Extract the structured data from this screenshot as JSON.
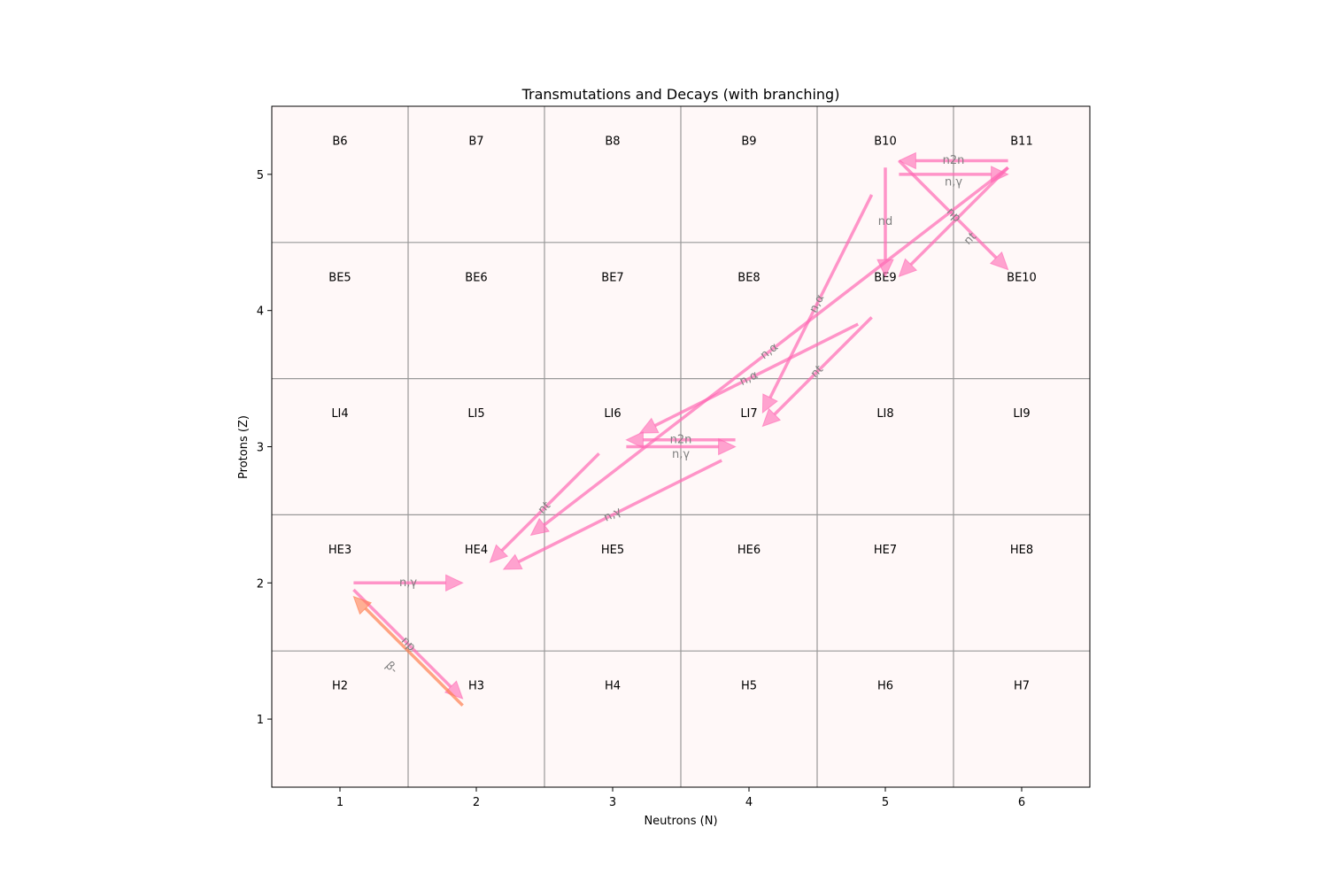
{
  "chart_data": {
    "type": "diagram-arrows",
    "title": "Transmutations and Decays (with branching)",
    "xlabel": "Neutrons (N)",
    "ylabel": "Protons (Z)",
    "xlim": [
      0.5,
      6.5
    ],
    "ylim": [
      0.5,
      5.5
    ],
    "xticks": [
      1,
      2,
      3,
      4,
      5,
      6
    ],
    "yticks": [
      1,
      2,
      3,
      4,
      5
    ],
    "grid": false,
    "background_color": "#fff8f8",
    "cell_border_color": "#999999",
    "cells": [
      {
        "n": 1,
        "z": 1,
        "label": "H2"
      },
      {
        "n": 2,
        "z": 1,
        "label": "H3"
      },
      {
        "n": 3,
        "z": 1,
        "label": "H4"
      },
      {
        "n": 4,
        "z": 1,
        "label": "H5"
      },
      {
        "n": 5,
        "z": 1,
        "label": "H6"
      },
      {
        "n": 6,
        "z": 1,
        "label": "H7"
      },
      {
        "n": 1,
        "z": 2,
        "label": "HE3"
      },
      {
        "n": 2,
        "z": 2,
        "label": "HE4"
      },
      {
        "n": 3,
        "z": 2,
        "label": "HE5"
      },
      {
        "n": 4,
        "z": 2,
        "label": "HE6"
      },
      {
        "n": 5,
        "z": 2,
        "label": "HE7"
      },
      {
        "n": 6,
        "z": 2,
        "label": "HE8"
      },
      {
        "n": 1,
        "z": 3,
        "label": "LI4"
      },
      {
        "n": 2,
        "z": 3,
        "label": "LI5"
      },
      {
        "n": 3,
        "z": 3,
        "label": "LI6"
      },
      {
        "n": 4,
        "z": 3,
        "label": "LI7"
      },
      {
        "n": 5,
        "z": 3,
        "label": "LI8"
      },
      {
        "n": 6,
        "z": 3,
        "label": "LI9"
      },
      {
        "n": 1,
        "z": 4,
        "label": "BE5"
      },
      {
        "n": 2,
        "z": 4,
        "label": "BE6"
      },
      {
        "n": 3,
        "z": 4,
        "label": "BE7"
      },
      {
        "n": 4,
        "z": 4,
        "label": "BE8"
      },
      {
        "n": 5,
        "z": 4,
        "label": "BE9"
      },
      {
        "n": 6,
        "z": 4,
        "label": "BE10"
      },
      {
        "n": 1,
        "z": 5,
        "label": "B6"
      },
      {
        "n": 2,
        "z": 5,
        "label": "B7"
      },
      {
        "n": 3,
        "z": 5,
        "label": "B8"
      },
      {
        "n": 4,
        "z": 5,
        "label": "B9"
      },
      {
        "n": 5,
        "z": 5,
        "label": "B10"
      },
      {
        "n": 6,
        "z": 5,
        "label": "B11"
      }
    ],
    "colors": {
      "transmutation": "#ff69b4",
      "decay": "#ff7f50",
      "label": "#808080"
    },
    "arrows": [
      {
        "from": [
          1.1,
          2.0
        ],
        "to": [
          1.9,
          2.0
        ],
        "label": "n,γ",
        "kind": "transmutation"
      },
      {
        "from": [
          1.1,
          1.95
        ],
        "to": [
          1.9,
          1.15
        ],
        "label": "np",
        "kind": "transmutation"
      },
      {
        "from": [
          1.9,
          1.1
        ],
        "to": [
          1.1,
          1.9
        ],
        "label": "β-",
        "kind": "decay"
      },
      {
        "from": [
          2.9,
          2.95
        ],
        "to": [
          2.1,
          2.15
        ],
        "label": "nt",
        "kind": "transmutation"
      },
      {
        "from": [
          3.8,
          2.9
        ],
        "to": [
          2.2,
          2.1
        ],
        "label": "n,γ",
        "kind": "transmutation"
      },
      {
        "from": [
          3.9,
          3.05
        ],
        "to": [
          3.1,
          3.05
        ],
        "label": "n2n",
        "kind": "transmutation"
      },
      {
        "from": [
          3.1,
          3.0
        ],
        "to": [
          3.9,
          3.0
        ],
        "label": "n,γ",
        "kind": "transmutation"
      },
      {
        "from": [
          4.8,
          3.9
        ],
        "to": [
          3.2,
          3.1
        ],
        "label": "n,α",
        "kind": "transmutation"
      },
      {
        "from": [
          5.9,
          5.05
        ],
        "to": [
          2.4,
          2.35
        ],
        "label": "n,α",
        "kind": "transmutation"
      },
      {
        "from": [
          4.9,
          4.85
        ],
        "to": [
          4.1,
          3.25
        ],
        "label": "n,α",
        "kind": "transmutation"
      },
      {
        "from": [
          4.9,
          3.95
        ],
        "to": [
          4.1,
          3.15
        ],
        "label": "nt",
        "kind": "transmutation"
      },
      {
        "from": [
          5.0,
          5.05
        ],
        "to": [
          5.0,
          4.25
        ],
        "label": "nd",
        "kind": "transmutation"
      },
      {
        "from": [
          5.9,
          5.1
        ],
        "to": [
          5.1,
          5.1
        ],
        "label": "n2n",
        "kind": "transmutation"
      },
      {
        "from": [
          5.1,
          5.0
        ],
        "to": [
          5.9,
          5.0
        ],
        "label": "n,γ",
        "kind": "transmutation"
      },
      {
        "from": [
          5.1,
          5.1
        ],
        "to": [
          5.9,
          4.3
        ],
        "label": "np",
        "kind": "transmutation"
      },
      {
        "from": [
          5.9,
          5.05
        ],
        "to": [
          5.1,
          4.25
        ],
        "label": "nt",
        "kind": "transmutation"
      }
    ]
  }
}
